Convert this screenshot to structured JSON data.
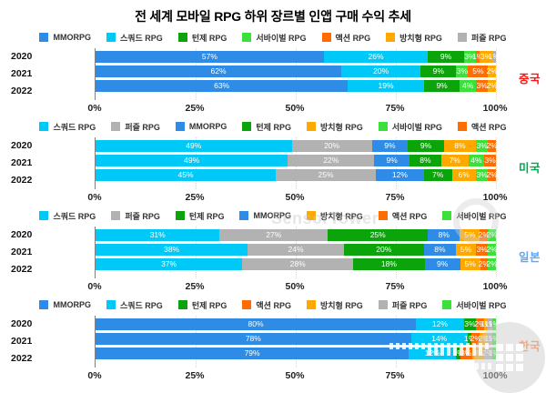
{
  "title": "전 세계 모바일 RPG 하위 장르별 인앱 구매 수익 추세",
  "axis": {
    "ticks": [
      "0%",
      "25%",
      "50%",
      "75%",
      "100%"
    ],
    "range": [
      0,
      100
    ],
    "unit": "%"
  },
  "genre_colors": {
    "MMORPG": "#2E8BE6",
    "스쿼드 RPG": "#00C9F7",
    "턴제 RPG": "#0BA50B",
    "서바이벌 RPG": "#3BE03B",
    "액션 RPG": "#FF6D00",
    "방치형 RPG": "#FFA900",
    "퍼즐 RPG": "#B2B2B2"
  },
  "watermark": {
    "center_text": "SensorTower"
  },
  "chart_data": [
    {
      "type": "bar",
      "stacked": true,
      "orientation": "horizontal",
      "unit": "%",
      "country": "중국",
      "country_color": "#FF1414",
      "legend": [
        "MMORPG",
        "스쿼드 RPG",
        "턴제 RPG",
        "서바이벌 RPG",
        "액션 RPG",
        "방치형 RPG",
        "퍼즐 RPG"
      ],
      "categories": [
        "2020",
        "2021",
        "2022"
      ],
      "rows": [
        {
          "year": "2020",
          "segments": [
            {
              "genre": "MMORPG",
              "value": 57
            },
            {
              "genre": "스쿼드 RPG",
              "value": 26
            },
            {
              "genre": "턴제 RPG",
              "value": 9
            },
            {
              "genre": "서바이벌 RPG",
              "value": 3
            },
            {
              "genre": "액션 RPG",
              "value": 1
            },
            {
              "genre": "방치형 RPG",
              "value": 3
            },
            {
              "genre": "퍼즐 RPG",
              "value": 1
            }
          ]
        },
        {
          "year": "2021",
          "segments": [
            {
              "genre": "MMORPG",
              "value": 62
            },
            {
              "genre": "스쿼드 RPG",
              "value": 20
            },
            {
              "genre": "턴제 RPG",
              "value": 9
            },
            {
              "genre": "서바이벌 RPG",
              "value": 3
            },
            {
              "genre": "액션 RPG",
              "value": 5
            },
            {
              "genre": "방치형 RPG",
              "value": 2
            }
          ]
        },
        {
          "year": "2022",
          "segments": [
            {
              "genre": "MMORPG",
              "value": 63
            },
            {
              "genre": "스쿼드 RPG",
              "value": 19
            },
            {
              "genre": "턴제 RPG",
              "value": 9
            },
            {
              "genre": "서바이벌 RPG",
              "value": 4
            },
            {
              "genre": "액션 RPG",
              "value": 3
            },
            {
              "genre": "방치형 RPG",
              "value": 2
            }
          ]
        }
      ]
    },
    {
      "type": "bar",
      "stacked": true,
      "orientation": "horizontal",
      "unit": "%",
      "country": "미국",
      "country_color": "#00A84F",
      "legend": [
        "스쿼드 RPG",
        "퍼즐 RPG",
        "MMORPG",
        "턴제 RPG",
        "방치형 RPG",
        "서바이벌 RPG",
        "액션 RPG"
      ],
      "categories": [
        "2020",
        "2021",
        "2022"
      ],
      "rows": [
        {
          "year": "2020",
          "segments": [
            {
              "genre": "스쿼드 RPG",
              "value": 49
            },
            {
              "genre": "퍼즐 RPG",
              "value": 20
            },
            {
              "genre": "MMORPG",
              "value": 9
            },
            {
              "genre": "턴제 RPG",
              "value": 9
            },
            {
              "genre": "방치형 RPG",
              "value": 8
            },
            {
              "genre": "서바이벌 RPG",
              "value": 3
            },
            {
              "genre": "액션 RPG",
              "value": 2
            }
          ]
        },
        {
          "year": "2021",
          "segments": [
            {
              "genre": "스쿼드 RPG",
              "value": 49
            },
            {
              "genre": "퍼즐 RPG",
              "value": 22
            },
            {
              "genre": "MMORPG",
              "value": 9
            },
            {
              "genre": "턴제 RPG",
              "value": 8
            },
            {
              "genre": "방치형 RPG",
              "value": 7
            },
            {
              "genre": "서바이벌 RPG",
              "value": 4
            },
            {
              "genre": "액션 RPG",
              "value": 3
            }
          ]
        },
        {
          "year": "2022",
          "segments": [
            {
              "genre": "스쿼드 RPG",
              "value": 45
            },
            {
              "genre": "퍼즐 RPG",
              "value": 25
            },
            {
              "genre": "MMORPG",
              "value": 12
            },
            {
              "genre": "턴제 RPG",
              "value": 7
            },
            {
              "genre": "방치형 RPG",
              "value": 6
            },
            {
              "genre": "서바이벌 RPG",
              "value": 3
            },
            {
              "genre": "액션 RPG",
              "value": 2
            }
          ]
        }
      ]
    },
    {
      "type": "bar",
      "stacked": true,
      "orientation": "horizontal",
      "unit": "%",
      "country": "일본",
      "country_color": "#58A9FF",
      "legend": [
        "스쿼드 RPG",
        "퍼즐 RPG",
        "턴제 RPG",
        "MMORPG",
        "방치형 RPG",
        "액션 RPG",
        "서바이벌 RPG"
      ],
      "categories": [
        "2020",
        "2021",
        "2022"
      ],
      "rows": [
        {
          "year": "2020",
          "segments": [
            {
              "genre": "스쿼드 RPG",
              "value": 31
            },
            {
              "genre": "퍼즐 RPG",
              "value": 27
            },
            {
              "genre": "턴제 RPG",
              "value": 25
            },
            {
              "genre": "MMORPG",
              "value": 8
            },
            {
              "genre": "방치형 RPG",
              "value": 5
            },
            {
              "genre": "액션 RPG",
              "value": 2
            },
            {
              "genre": "서바이벌 RPG",
              "value": 2
            }
          ]
        },
        {
          "year": "2021",
          "segments": [
            {
              "genre": "스쿼드 RPG",
              "value": 38
            },
            {
              "genre": "퍼즐 RPG",
              "value": 24
            },
            {
              "genre": "턴제 RPG",
              "value": 20
            },
            {
              "genre": "MMORPG",
              "value": 8
            },
            {
              "genre": "방치형 RPG",
              "value": 5
            },
            {
              "genre": "액션 RPG",
              "value": 3
            },
            {
              "genre": "서바이벌 RPG",
              "value": 2
            }
          ]
        },
        {
          "year": "2022",
          "segments": [
            {
              "genre": "스쿼드 RPG",
              "value": 37
            },
            {
              "genre": "퍼즐 RPG",
              "value": 28
            },
            {
              "genre": "턴제 RPG",
              "value": 18
            },
            {
              "genre": "MMORPG",
              "value": 9
            },
            {
              "genre": "방치형 RPG",
              "value": 5
            },
            {
              "genre": "액션 RPG",
              "value": 2
            },
            {
              "genre": "서바이벌 RPG",
              "value": 2
            }
          ]
        }
      ]
    },
    {
      "type": "bar",
      "stacked": true,
      "orientation": "horizontal",
      "unit": "%",
      "country": "한국",
      "country_color": "#FF8A4D",
      "legend": [
        "MMORPG",
        "스쿼드 RPG",
        "턴제 RPG",
        "액션 RPG",
        "방치형 RPG",
        "퍼즐 RPG",
        "서바이벌 RPG"
      ],
      "categories": [
        "2020",
        "2021",
        "2022"
      ],
      "rows": [
        {
          "year": "2020",
          "segments": [
            {
              "genre": "MMORPG",
              "value": 80
            },
            {
              "genre": "스쿼드 RPG",
              "value": 12
            },
            {
              "genre": "턴제 RPG",
              "value": 3
            },
            {
              "genre": "액션 RPG",
              "value": 2
            },
            {
              "genre": "방치형 RPG",
              "value": 1
            },
            {
              "genre": "퍼즐 RPG",
              "value": 1
            },
            {
              "genre": "서바이벌 RPG",
              "value": 1
            }
          ]
        },
        {
          "year": "2021",
          "segments": [
            {
              "genre": "MMORPG",
              "value": 78
            },
            {
              "genre": "스쿼드 RPG",
              "value": 14
            },
            {
              "genre": "턴제 RPG",
              "value": 1
            },
            {
              "genre": "액션 RPG",
              "value": 2
            },
            {
              "genre": "방치형 RPG",
              "value": 2
            },
            {
              "genre": "퍼즐 RPG",
              "value": 1
            },
            {
              "genre": "서바이벌 RPG",
              "value": 1
            }
          ]
        },
        {
          "year": "2022",
          "segments": [
            {
              "genre": "MMORPG",
              "value": 79
            },
            {
              "genre": "스쿼드 RPG",
              "value": 12
            },
            {
              "genre": "턴제 RPG",
              "value": 1
            },
            {
              "genre": "액션 RPG",
              "value": 3
            },
            {
              "genre": "방치형 RPG",
              "value": 3
            },
            {
              "genre": "퍼즐 RPG",
              "value": 2
            },
            {
              "genre": "서바이벌 RPG",
              "value": 1
            }
          ]
        }
      ]
    }
  ]
}
